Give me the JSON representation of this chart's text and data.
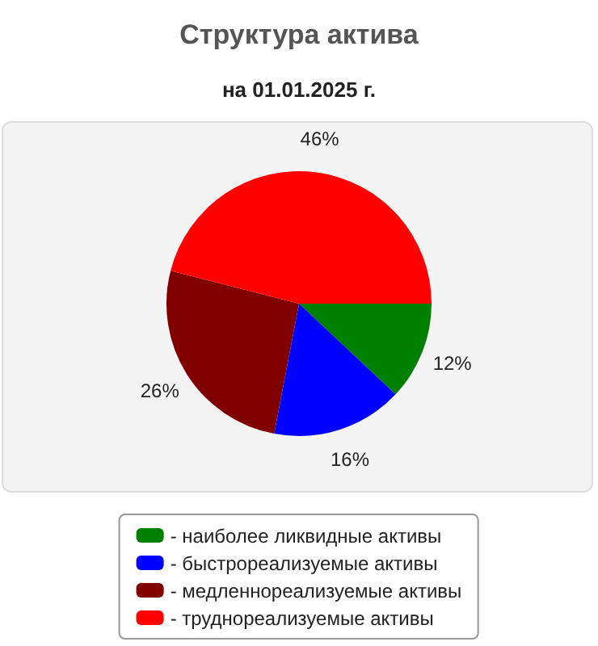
{
  "chart_data": {
    "type": "pie",
    "title": "Структура актива",
    "subtitle": "на 01.01.2025 г.",
    "categories": [
      "- наиболее ликвидные активы",
      "- быстрореализуемые активы",
      "- медленнореализуемые активы",
      "- труднореализуемые активы"
    ],
    "values": [
      12,
      16,
      26,
      46
    ],
    "colors": [
      "#008000",
      "#0000ff",
      "#800000",
      "#ff0000"
    ],
    "value_labels": [
      "12%",
      "16%",
      "26%",
      "46%"
    ],
    "legend": "bottom"
  }
}
